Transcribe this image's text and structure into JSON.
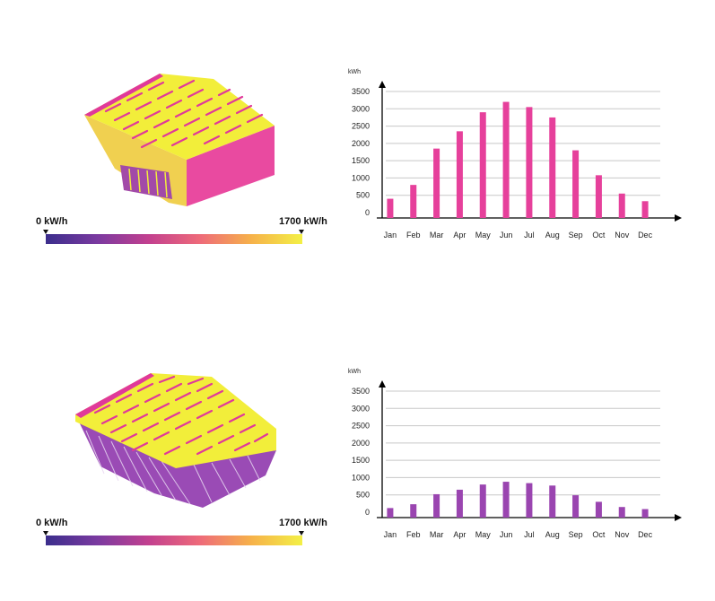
{
  "colors": {
    "scale_gradient": [
      "#3b2e8c",
      "#7a3aa0",
      "#c2408f",
      "#ee6a7a",
      "#f6b14a",
      "#f3f046"
    ],
    "roof_yellow": "#f2ee3a",
    "panel_pink": "#e0399a",
    "wall_pink": "#e94aa0",
    "wall_purple": "#8a4bb0",
    "bar_top_chart": "#e6409b",
    "bar_bottom_chart": "#9a45b0",
    "grid": "#c8c8c8",
    "axis": "#000000"
  },
  "panels": [
    {
      "scale_min_label": "0 kW/h",
      "scale_max_label": "1700 kW/h"
    },
    {
      "scale_min_label": "0 kW/h",
      "scale_max_label": "1700 kW/h"
    }
  ],
  "chart_data": [
    {
      "type": "bar",
      "ylabel": "kWh",
      "ylim": [
        0,
        3600
      ],
      "yticks": [
        0,
        500,
        1000,
        1500,
        2000,
        2500,
        3000,
        3500
      ],
      "grid": true,
      "categories": [
        "Jan",
        "Feb",
        "Mar",
        "Apr",
        "May",
        "Jun",
        "Jul",
        "Aug",
        "Sep",
        "Oct",
        "Nov",
        "Dec"
      ],
      "values": [
        400,
        800,
        1850,
        2350,
        2900,
        3200,
        3050,
        2750,
        1800,
        1080,
        550,
        330
      ],
      "color": "#e6409b"
    },
    {
      "type": "bar",
      "ylabel": "kWh",
      "ylim": [
        0,
        3600
      ],
      "yticks": [
        0,
        500,
        1000,
        1500,
        2000,
        2500,
        3000,
        3500
      ],
      "grid": true,
      "categories": [
        "Jan",
        "Feb",
        "Mar",
        "Apr",
        "May",
        "Jun",
        "Jul",
        "Aug",
        "Sep",
        "Oct",
        "Nov",
        "Dec"
      ],
      "values": [
        120,
        230,
        520,
        650,
        800,
        880,
        840,
        770,
        490,
        300,
        150,
        90
      ],
      "color": "#9a45b0"
    }
  ]
}
